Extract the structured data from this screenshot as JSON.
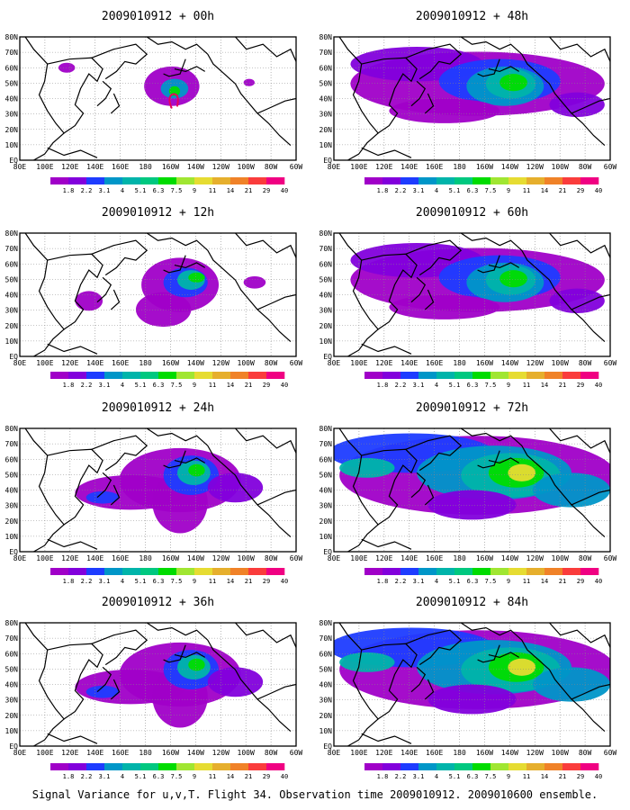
{
  "figure": {
    "caption": "Signal Variance for u,v,T. Flight 34. Observation time 2009010912. 2009010600 ensemble.",
    "lon_ticks": [
      "80E",
      "100E",
      "120E",
      "140E",
      "160E",
      "180",
      "160W",
      "140W",
      "120W",
      "100W",
      "80W",
      "60W"
    ],
    "lat_ticks": [
      "80N",
      "70N",
      "60N",
      "50N",
      "40N",
      "30N",
      "20N",
      "10N",
      "EQ"
    ],
    "colorbar_labels": [
      "1.8",
      "2.2",
      "3.1",
      "4",
      "5.1",
      "6.3",
      "7.5",
      "9",
      "11",
      "14",
      "21",
      "29",
      "40"
    ],
    "colorbar_colors": [
      "#a000c8",
      "#8200dc",
      "#1e3cff",
      "#0096c8",
      "#00b4aa",
      "#00c880",
      "#00dc00",
      "#a0e632",
      "#e6dc32",
      "#e6af2d",
      "#f08228",
      "#fa3c3c",
      "#f00082"
    ],
    "panels": [
      {
        "id": "p00",
        "title": "2009010912 + 00h",
        "level": 0
      },
      {
        "id": "p48",
        "title": "2009010912 + 48h",
        "level": 3
      },
      {
        "id": "p12",
        "title": "2009010912 + 12h",
        "level": 1
      },
      {
        "id": "p60",
        "title": "2009010912 + 60h",
        "level": 3
      },
      {
        "id": "p24",
        "title": "2009010912 + 24h",
        "level": 2
      },
      {
        "id": "p72",
        "title": "2009010912 + 72h",
        "level": 4
      },
      {
        "id": "p36",
        "title": "2009010912 + 36h",
        "level": 2
      },
      {
        "id": "p84",
        "title": "2009010912 + 84h",
        "level": 4
      }
    ]
  }
}
